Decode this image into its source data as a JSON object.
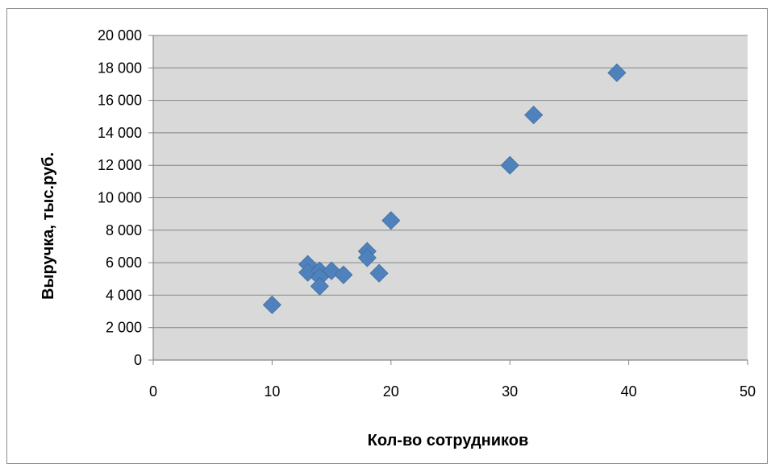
{
  "chart_data": {
    "type": "scatter",
    "title": "",
    "xlabel": "Кол-во сотрудников",
    "ylabel": "Выручка, тыс.руб.",
    "xlim": [
      0,
      50
    ],
    "ylim": [
      0,
      20000
    ],
    "x_ticks": [
      "0",
      "10",
      "20",
      "30",
      "40",
      "50"
    ],
    "y_ticks": [
      "0",
      "2 000",
      "4 000",
      "6 000",
      "8 000",
      "10 000",
      "12 000",
      "14 000",
      "16 000",
      "18 000",
      "20 000"
    ],
    "grid": true,
    "legend": "none",
    "colors": {
      "marker": "#4f81bd",
      "plot_background": "#d9d9d9",
      "gridline": "#868686"
    },
    "series": [
      {
        "marker": "diamond",
        "points": [
          {
            "x": 10,
            "y": 3400
          },
          {
            "x": 13,
            "y": 5900
          },
          {
            "x": 13,
            "y": 5400
          },
          {
            "x": 14,
            "y": 5500
          },
          {
            "x": 14,
            "y": 5100
          },
          {
            "x": 14,
            "y": 4550
          },
          {
            "x": 15,
            "y": 5500
          },
          {
            "x": 16,
            "y": 5250
          },
          {
            "x": 18,
            "y": 6700
          },
          {
            "x": 18,
            "y": 6300
          },
          {
            "x": 19,
            "y": 5350
          },
          {
            "x": 20,
            "y": 8600
          },
          {
            "x": 30,
            "y": 12000
          },
          {
            "x": 32,
            "y": 15100
          },
          {
            "x": 39,
            "y": 17700
          }
        ]
      }
    ]
  }
}
